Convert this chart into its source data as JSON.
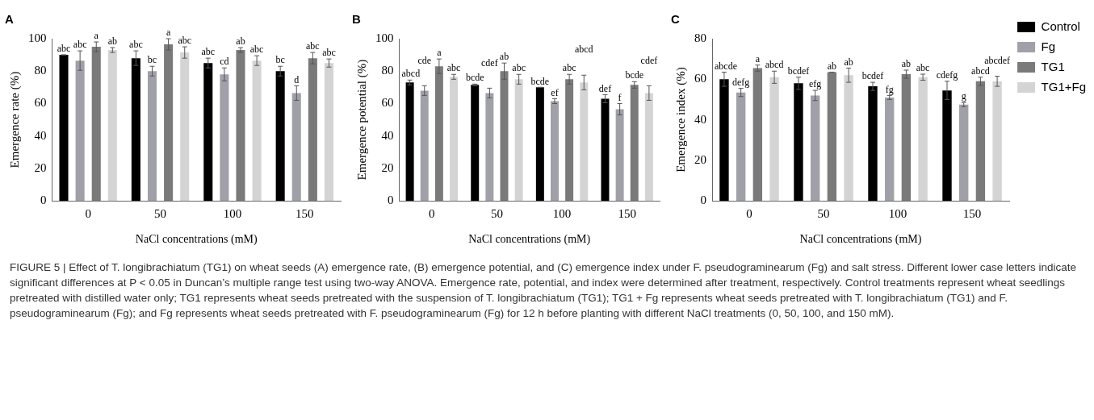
{
  "chart_data": [
    {
      "type": "bar",
      "title": "A",
      "xlabel": "NaCl concentrations (mM)",
      "ylabel": "Emergence rate (%)",
      "categories": [
        "0",
        "50",
        "100",
        "150"
      ],
      "ylim": [
        0,
        100
      ],
      "yticks": [
        0,
        20,
        40,
        60,
        80,
        100
      ],
      "grid": false,
      "legend": false,
      "series": [
        {
          "color": "#000000",
          "values": [
            90,
            88,
            85,
            80
          ],
          "errors": [
            0,
            4.5,
            3,
            3
          ],
          "value_labels": [
            "abc",
            "abc",
            "abc",
            "bc"
          ]
        },
        {
          "color": "#a0a0a8",
          "values": [
            86.5,
            80,
            78,
            66.5
          ],
          "errors": [
            6,
            3,
            4,
            4.5
          ],
          "value_labels": [
            "abc",
            "bc",
            "cd",
            "d"
          ]
        },
        {
          "color": "#7a7a7a",
          "values": [
            95,
            96.5,
            93,
            88
          ],
          "errors": [
            3,
            3.5,
            1.5,
            3.5
          ],
          "value_labels": [
            "a",
            "a",
            "ab",
            "abc"
          ]
        },
        {
          "color": "#d4d4d4",
          "values": [
            93,
            91.5,
            86.5,
            85
          ],
          "errors": [
            1.5,
            3.5,
            3,
            2.5
          ],
          "value_labels": [
            "ab",
            "abc",
            "abc",
            "abc"
          ]
        }
      ],
      "annotations": [
        "FIGURE 5 | Effect of T. longibrachiatum (TG1) on wheat seeds (A) emergence rate, (B) emergence potential, and (C) emergence index under F. pseudograminearum (Fg) and salt stress. Different lower case letters indicate significant differences at P < 0.05 in Duncan’s multiple range test using two-way ANOVA. Emergence rate, potential, and index were determined after treatment, respectively. Control treatments represent wheat seedlings pretreated with distilled water only; TG1 represents wheat seeds pretreated with the suspension of T. longibrachiatum (TG1); TG1 + Fg represents wheat seeds pretreated with T. longibrachiatum (TG1) and F. pseudograminearum (Fg); and Fg represents wheat seeds pretreated with F. pseudograminearum (Fg) for 12 h before planting with different NaCl treatments (0, 50, 100, and 150 mM)."
      ]
    },
    {
      "type": "bar",
      "title": "B",
      "xlabel": "NaCl concentrations (mM)",
      "ylabel": "Emergence potential (%)",
      "categories": [
        "0",
        "50",
        "100",
        "150"
      ],
      "ylim": [
        0,
        100
      ],
      "yticks": [
        0,
        20,
        40,
        60,
        80,
        100
      ],
      "grid": false,
      "legend": false,
      "series": [
        {
          "color": "#000000",
          "values": [
            73,
            71.5,
            70,
            63
          ],
          "errors": [
            1.5,
            0.5,
            0,
            2.5
          ],
          "value_labels": [
            "abcd",
            "bcde",
            "bcde",
            "def"
          ]
        },
        {
          "color": "#a0a0a8",
          "values": [
            68,
            66.5,
            61.5,
            56.5
          ],
          "errors": [
            3,
            3,
            1.5,
            3.5
          ],
          "value_labels": [
            "cde",
            "cdef",
            "ef",
            "f"
          ]
        },
        {
          "color": "#7a7a7a",
          "values": [
            83,
            80,
            75,
            71.5
          ],
          "errors": [
            4.5,
            5,
            3,
            2
          ],
          "value_labels": [
            "a",
            "ab",
            "abc",
            "bcde"
          ]
        },
        {
          "color": "#d4d4d4",
          "values": [
            76.5,
            75,
            73,
            66.5
          ],
          "errors": [
            1.5,
            3,
            4.5,
            4.5
          ],
          "value_labels": [
            "abc",
            "abc",
            "abcd",
            "cdef"
          ]
        }
      ]
    },
    {
      "type": "bar",
      "title": "C",
      "xlabel": "NaCl concentrations (mM)",
      "ylabel": "Emergence index (%)",
      "categories": [
        "0",
        "50",
        "100",
        "150"
      ],
      "ylim": [
        0,
        80
      ],
      "yticks": [
        0,
        20,
        40,
        60,
        80
      ],
      "grid": false,
      "legend": "right",
      "series": [
        {
          "name": "Control",
          "color": "#000000",
          "values": [
            60,
            58,
            56.5,
            54.5
          ],
          "errors": [
            3.5,
            3,
            2,
            4.5
          ],
          "value_labels": [
            "abcde",
            "bcdef",
            "bcdef",
            "cdefg"
          ]
        },
        {
          "name": "Fg",
          "color": "#a0a0a8",
          "values": [
            53.5,
            52,
            51,
            47.5
          ],
          "errors": [
            2,
            2.5,
            1,
            1
          ],
          "value_labels": [
            "defg",
            "efg",
            "fg",
            "g"
          ]
        },
        {
          "name": "TG1",
          "color": "#7a7a7a",
          "values": [
            65.5,
            63.5,
            62.5,
            59
          ],
          "errors": [
            1.5,
            0,
            2,
            2
          ],
          "value_labels": [
            "a",
            "ab",
            "ab",
            "abcd"
          ]
        },
        {
          "name": "TG1+Fg",
          "color": "#d4d4d4",
          "values": [
            61,
            62,
            61,
            59
          ],
          "errors": [
            3,
            3.5,
            1.5,
            2.5
          ],
          "value_labels": [
            "abcd",
            "ab",
            "abc",
            "abcdef"
          ]
        }
      ]
    }
  ]
}
